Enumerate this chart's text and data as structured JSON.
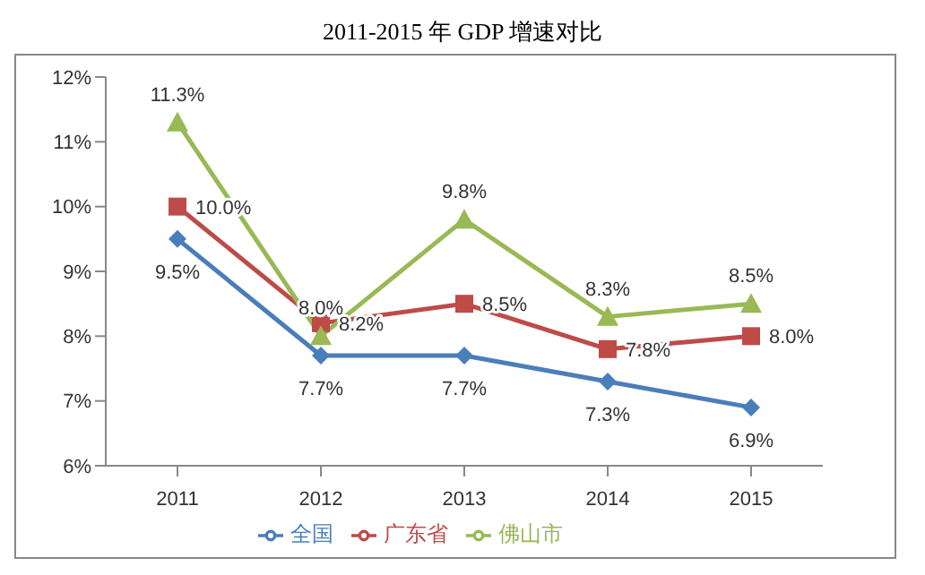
{
  "chart_data": {
    "type": "line",
    "title": "2011-2015 年 GDP 增速对比",
    "categories": [
      "2011",
      "2012",
      "2013",
      "2014",
      "2015"
    ],
    "series": [
      {
        "name": "全国",
        "color": "#4a7ebb",
        "marker": "diamond",
        "values": [
          9.5,
          7.7,
          7.7,
          7.3,
          6.9
        ],
        "value_labels": [
          "9.5%",
          "7.7%",
          "7.7%",
          "7.3%",
          "6.9%"
        ]
      },
      {
        "name": "广东省",
        "color": "#be4b48",
        "marker": "square",
        "values": [
          10.0,
          8.2,
          8.5,
          7.8,
          8.0
        ],
        "value_labels": [
          "10.0%",
          "8.2%",
          "8.5%",
          "7.8%",
          "8.0%"
        ]
      },
      {
        "name": "佛山市",
        "color": "#98b954",
        "marker": "triangle",
        "values": [
          11.3,
          8.0,
          9.8,
          8.3,
          8.5
        ],
        "value_labels": [
          "11.3%",
          "8.0%",
          "9.8%",
          "8.3%",
          "8.5%"
        ]
      }
    ],
    "ylim": [
      6,
      12
    ],
    "yticks": [
      {
        "value": 6,
        "label": "6%"
      },
      {
        "value": 7,
        "label": "7%"
      },
      {
        "value": 8,
        "label": "8%"
      },
      {
        "value": 9,
        "label": "9%"
      },
      {
        "value": 10,
        "label": "10%"
      },
      {
        "value": 11,
        "label": "11%"
      },
      {
        "value": 12,
        "label": "12%"
      }
    ],
    "grid": false,
    "legend": "bottom"
  }
}
